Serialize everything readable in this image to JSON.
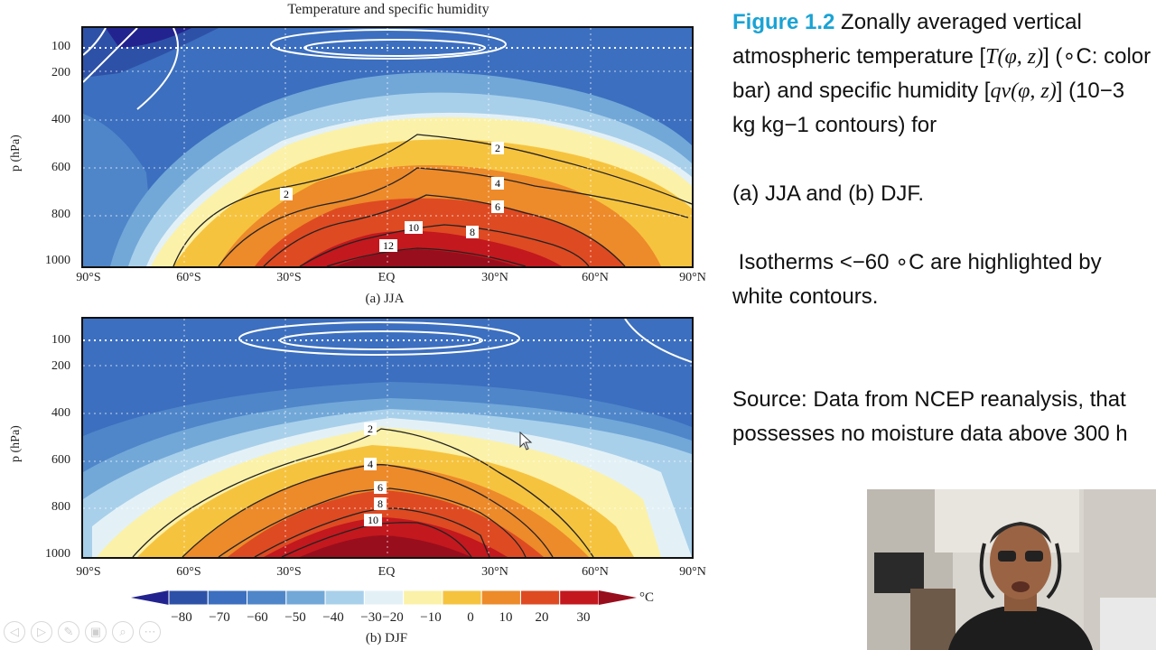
{
  "figure": {
    "title": "Temperature and specific humidity",
    "y_axis_label": "p (hPa)",
    "y_ticks": [
      "100",
      "200",
      "400",
      "600",
      "800",
      "1000"
    ],
    "x_ticks": [
      "90°S",
      "60°S",
      "30°S",
      "EQ",
      "30°N",
      "60°N",
      "90°N"
    ],
    "panel_a": {
      "caption": "(a) JJA",
      "contour_labels": [
        "2",
        "2",
        "4",
        "6",
        "8",
        "10",
        "12"
      ]
    },
    "panel_b": {
      "caption": "(b) DJF",
      "contour_labels": [
        "2",
        "4",
        "6",
        "8",
        "10"
      ]
    },
    "colorbar": {
      "ticks": [
        "−80",
        "−70",
        "−60",
        "−50",
        "−40",
        "−30",
        "−20",
        "−10",
        "0",
        "10",
        "20",
        "30"
      ],
      "unit": "°C",
      "colors": [
        "#23238f",
        "#2e51a8",
        "#3c6fbf",
        "#4f86c9",
        "#72a8d8",
        "#a9d0ea",
        "#e3f1f7",
        "#fbf1a8",
        "#f6c33f",
        "#ed8a2a",
        "#de4a22",
        "#c3181e",
        "#980e1d"
      ]
    }
  },
  "caption": {
    "fig_label": "Figure 1.2",
    "line1_rest": " Zonally averaged vertical atmospheric temperature [",
    "T_sym": "T",
    "args1": "(φ, z)",
    "line2": "] (∘C: color bar) and specific humidity [",
    "qv_sym": "qv",
    "args2": "(φ, z)",
    "line3": "] (10−3 kg kg−1 contours) for",
    "panels_text": "(a)  JJA and (b) DJF.",
    "isotherm_text": " Isotherms <−60 ∘C are highlighted by white contours.",
    "source_text": "Source: Data from NCEP reanalysis, that possesses no moisture data above 300 h"
  },
  "toolbar": {
    "icons": [
      "prev-icon",
      "next-icon",
      "pen-icon",
      "slides-icon",
      "zoom-icon",
      "more-icon"
    ],
    "glyphs": [
      "◁",
      "▷",
      "✎",
      "▣",
      "⌕",
      "⋯"
    ]
  }
}
